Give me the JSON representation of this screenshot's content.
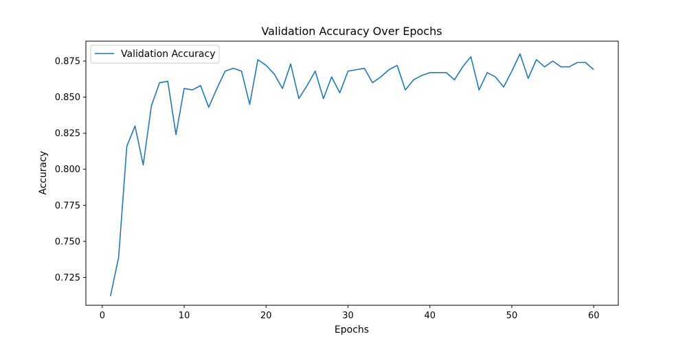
{
  "chart_data": {
    "type": "line",
    "title": "Validation Accuracy Over Epochs",
    "xlabel": "Epochs",
    "ylabel": "Accuracy",
    "xlim": [
      -2,
      63
    ],
    "ylim": [
      0.7057,
      0.8888
    ],
    "xticks": [
      0,
      10,
      20,
      30,
      40,
      50,
      60
    ],
    "yticks": [
      0.725,
      0.75,
      0.775,
      0.8,
      0.825,
      0.85,
      0.875
    ],
    "ytick_labels": [
      "0.725",
      "0.750",
      "0.775",
      "0.800",
      "0.825",
      "0.850",
      "0.875"
    ],
    "grid": false,
    "legend": "top-left",
    "series": [
      {
        "name": "Validation Accuracy",
        "color": "#1f77b4",
        "x": [
          1,
          2,
          3,
          4,
          5,
          6,
          7,
          8,
          9,
          10,
          11,
          12,
          13,
          14,
          15,
          16,
          17,
          18,
          19,
          20,
          21,
          22,
          23,
          24,
          25,
          26,
          27,
          28,
          29,
          30,
          31,
          32,
          33,
          34,
          35,
          36,
          37,
          38,
          39,
          40,
          41,
          42,
          43,
          44,
          45,
          46,
          47,
          48,
          49,
          50,
          51,
          52,
          53,
          54,
          55,
          56,
          57,
          58,
          59,
          60
        ],
        "y": [
          0.712,
          0.739,
          0.816,
          0.83,
          0.803,
          0.844,
          0.86,
          0.861,
          0.824,
          0.856,
          0.855,
          0.858,
          0.843,
          0.856,
          0.868,
          0.87,
          0.868,
          0.845,
          0.876,
          0.872,
          0.866,
          0.856,
          0.873,
          0.849,
          0.858,
          0.868,
          0.849,
          0.864,
          0.853,
          0.868,
          0.869,
          0.87,
          0.86,
          0.864,
          0.869,
          0.872,
          0.855,
          0.862,
          0.865,
          0.867,
          0.867,
          0.867,
          0.862,
          0.871,
          0.878,
          0.855,
          0.867,
          0.864,
          0.857,
          0.868,
          0.88,
          0.863,
          0.876,
          0.871,
          0.875,
          0.871,
          0.871,
          0.874,
          0.874,
          0.869
        ]
      }
    ]
  }
}
